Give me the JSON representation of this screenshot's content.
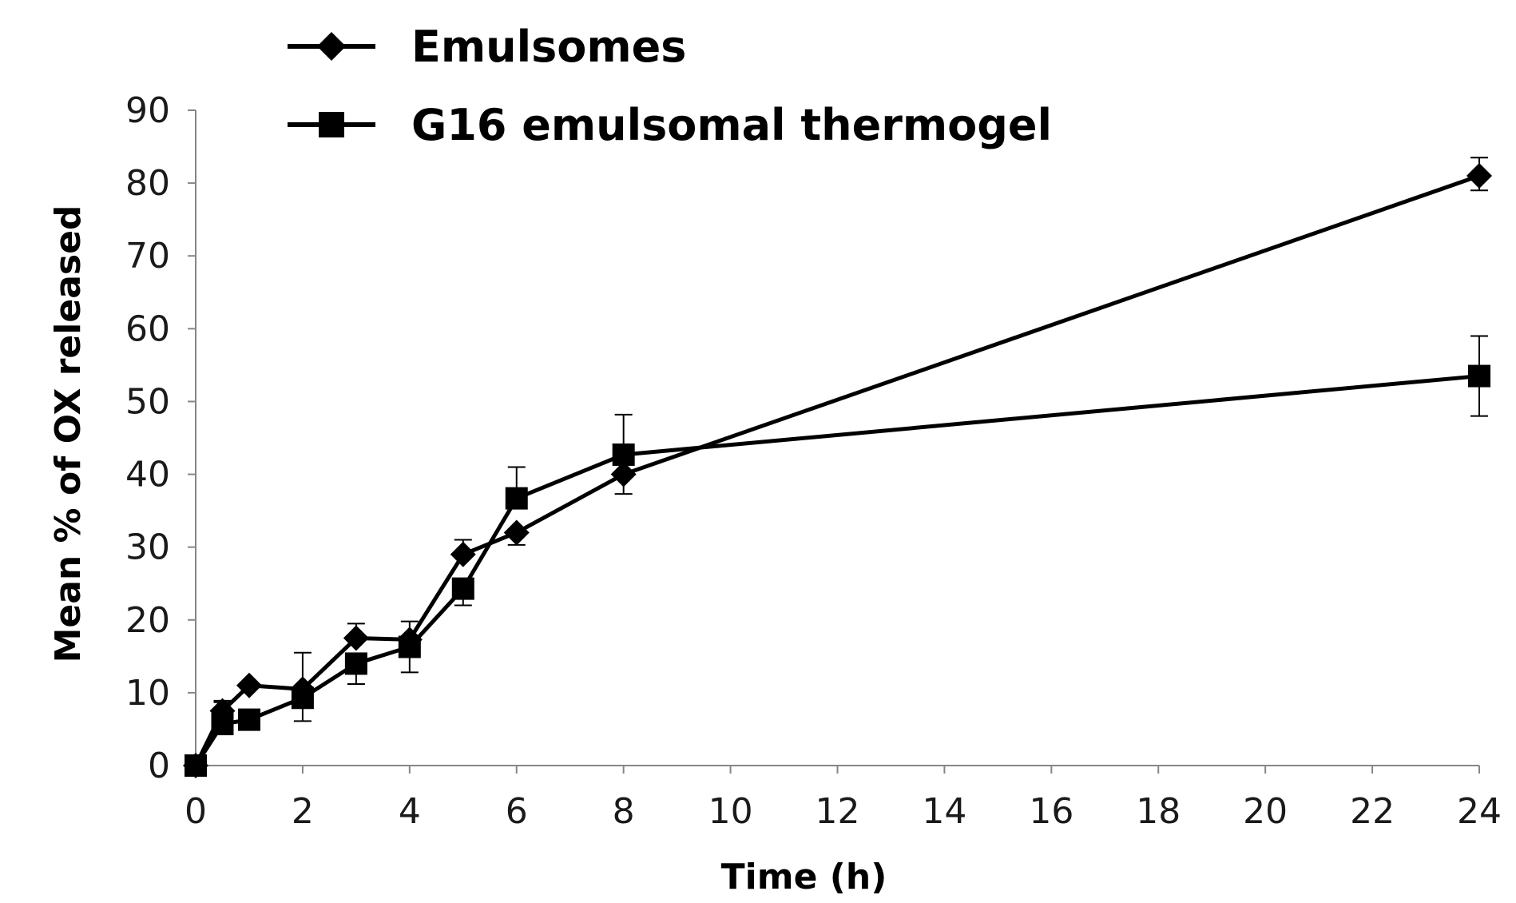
{
  "chart_data": {
    "type": "line",
    "title": "",
    "xlabel": "Time (h)",
    "ylabel": "Mean % of OX released",
    "xlim": [
      0,
      24
    ],
    "ylim": [
      0,
      90
    ],
    "xticks": [
      0,
      2,
      4,
      6,
      8,
      10,
      12,
      14,
      16,
      18,
      20,
      22,
      24
    ],
    "yticks": [
      0,
      10,
      20,
      30,
      40,
      50,
      60,
      70,
      80,
      90
    ],
    "x_tick_labels": [
      "0",
      "2",
      "4",
      "6",
      "8",
      "10",
      "12",
      "14",
      "16",
      "18",
      "20",
      "22",
      "24"
    ],
    "y_tick_labels": [
      "0",
      "10",
      "20",
      "30",
      "40",
      "50",
      "60",
      "70",
      "80",
      "90"
    ],
    "grid": false,
    "legend_position": "top-left",
    "series": [
      {
        "name": "Emulsomes",
        "marker": "diamond",
        "color": "#000000",
        "x": [
          0,
          0.5,
          1,
          2,
          3,
          4,
          5,
          6,
          8,
          24
        ],
        "y": [
          0,
          7.5,
          11,
          10.5,
          17.5,
          17.3,
          29,
          32,
          40,
          81
        ],
        "error_up": [
          0,
          1.2,
          0,
          5,
          2,
          2.5,
          2,
          0,
          0,
          2.5
        ],
        "error_down": [
          0,
          0,
          0,
          0,
          0,
          0,
          0,
          1.7,
          2.7,
          2
        ]
      },
      {
        "name": "G16 emulsomal thermogel",
        "marker": "square",
        "color": "#000000",
        "x": [
          0,
          0.5,
          1,
          2,
          3,
          4,
          5,
          6,
          8,
          24
        ],
        "y": [
          0,
          5.7,
          6.3,
          9.3,
          14,
          16.3,
          24.3,
          36.7,
          42.7,
          53.5
        ],
        "error_up": [
          0,
          3.2,
          0,
          0,
          0,
          0,
          0,
          4.3,
          5.5,
          5.5
        ],
        "error_down": [
          0,
          0,
          0,
          3.2,
          2.8,
          3.5,
          2.3,
          0,
          0,
          5.5
        ]
      }
    ]
  }
}
